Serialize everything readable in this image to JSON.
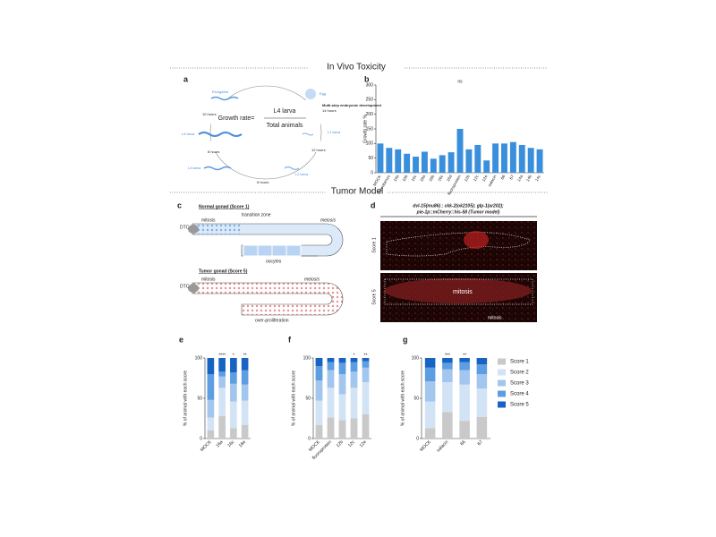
{
  "sections": [
    "In Vivo Toxicity",
    "Tumor Model"
  ],
  "panel_a": {
    "label": "a",
    "formula": {
      "left": "Growth rate=",
      "numerator": "L4 larva",
      "denominator": "Total animals"
    },
    "stages": [
      "Elongated",
      "Egg",
      "L1 larva",
      "L2 larva",
      "L3 larva",
      "L4 larva"
    ],
    "embryo_note": "Multi-step embryonic development",
    "embryo_time": "14 hours",
    "durations": [
      "10 hours",
      "8 hours",
      "6 hours",
      "12 hours"
    ]
  },
  "panel_c": {
    "label": "c",
    "normal_title": "Normal gonad (Score 1)",
    "tumor_title": "Tumor gonad (Score 5)",
    "normal_labels": [
      "DTC",
      "mitosis",
      "transition zone",
      "meiosis",
      "oocytes"
    ],
    "tumor_labels": [
      "DTC",
      "mitosis",
      "meiosis",
      "over-proliferation"
    ]
  },
  "panel_d": {
    "label": "d",
    "genotype": [
      "dvl-15(mu86) ; ckk-2(ok2105); glp-1(ar202);",
      "pie-1p::mCherry::his-58 (Tumor model)"
    ],
    "rows": [
      "Score 1",
      "Score 5"
    ],
    "annotations": [
      "mitosis",
      "mitosis"
    ]
  },
  "score_legend": {
    "names": [
      "Score 1",
      "Score 2",
      "Score 3",
      "Score 4",
      "Score 5"
    ],
    "colors": [
      "#c9c9c9",
      "#d3e3f6",
      "#a3c6ee",
      "#5d9de2",
      "#1763c4"
    ]
  },
  "chart_data": [
    {
      "type": "bar",
      "label": "b",
      "ylabel": "Growth rate %",
      "categories": [
        "MOCK",
        "fluorobenzo",
        "10a",
        "10b",
        "10c",
        "16a",
        "16b",
        "16c",
        "16d",
        "fluoroprotein",
        "12b",
        "12c",
        "12e",
        "salacin",
        "66",
        "67",
        "14a",
        "14b",
        "14c"
      ],
      "values": [
        100,
        85,
        80,
        65,
        55,
        72,
        48,
        60,
        70,
        150,
        80,
        95,
        42,
        100,
        100,
        105,
        95,
        85,
        80
      ],
      "color": "#3a8fdc",
      "ylim": [
        0,
        300
      ],
      "yticks": [
        0,
        50,
        100,
        150,
        200,
        250,
        300
      ],
      "annotation": "ns"
    },
    {
      "type": "stacked_bar",
      "label": "e",
      "ylabel": "% of animal with each score",
      "categories": [
        "MOCK",
        "16a",
        "16c",
        "16e"
      ],
      "series": [
        {
          "values": [
            10,
            28,
            13,
            17
          ]
        },
        {
          "values": [
            16,
            35,
            33,
            30
          ]
        },
        {
          "values": [
            22,
            14,
            22,
            20
          ]
        },
        {
          "values": [
            32,
            6,
            14,
            18
          ]
        },
        {
          "values": [
            20,
            17,
            18,
            15
          ]
        }
      ],
      "ylim": [
        0,
        100
      ],
      "yticks": [
        0,
        50,
        100
      ],
      "annotations": [
        null,
        "****",
        "*",
        "**"
      ]
    },
    {
      "type": "stacked_bar",
      "label": "f",
      "ylabel": "% of animal with each score",
      "categories": [
        "MOCK",
        "fluoroprotein",
        "12b",
        "12c",
        "12e"
      ],
      "series": [
        {
          "values": [
            17,
            26,
            23,
            25,
            30
          ]
        },
        {
          "values": [
            30,
            37,
            32,
            38,
            40
          ]
        },
        {
          "values": [
            25,
            22,
            25,
            20,
            18
          ]
        },
        {
          "values": [
            18,
            10,
            14,
            12,
            8
          ]
        },
        {
          "values": [
            10,
            5,
            6,
            5,
            4
          ]
        }
      ],
      "ylim": [
        0,
        100
      ],
      "yticks": [
        0,
        50,
        100
      ],
      "annotations": [
        null,
        null,
        null,
        "*",
        "**"
      ]
    },
    {
      "type": "stacked_bar",
      "label": "g",
      "ylabel": "% of animal with each score",
      "categories": [
        "MOCK",
        "salacin",
        "66",
        "67"
      ],
      "series": [
        {
          "values": [
            13,
            33,
            22,
            27
          ]
        },
        {
          "values": [
            33,
            37,
            45,
            35
          ]
        },
        {
          "values": [
            25,
            16,
            18,
            18
          ]
        },
        {
          "values": [
            17,
            8,
            10,
            12
          ]
        },
        {
          "values": [
            12,
            6,
            5,
            8
          ]
        }
      ],
      "ylim": [
        0,
        100
      ],
      "yticks": [
        0,
        50,
        100
      ],
      "annotations": [
        null,
        "***",
        "**",
        null
      ]
    }
  ]
}
